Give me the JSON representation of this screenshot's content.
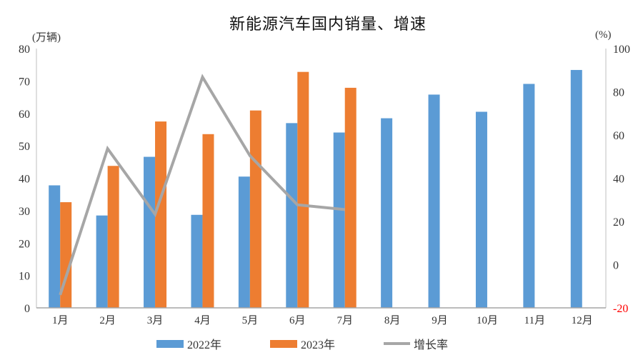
{
  "chart_data": {
    "type": "combo-bar-line",
    "title": "新能源汽车国内销量、增速",
    "categories": [
      "1月",
      "2月",
      "3月",
      "4月",
      "5月",
      "6月",
      "7月",
      "8月",
      "9月",
      "10月",
      "11月",
      "12月"
    ],
    "series": [
      {
        "name": "2022年",
        "chart_type": "bar",
        "color": "#5B9BD5",
        "axis": "left",
        "values": [
          37.8,
          28.5,
          46.6,
          28.7,
          40.5,
          57.0,
          54.1,
          58.5,
          65.8,
          60.5,
          69.1,
          73.4
        ]
      },
      {
        "name": "2023年",
        "chart_type": "bar",
        "color": "#ED7D31",
        "axis": "left",
        "values": [
          32.6,
          43.8,
          57.5,
          53.6,
          60.9,
          72.8,
          67.9,
          null,
          null,
          null,
          null,
          null
        ]
      },
      {
        "name": "增长率",
        "chart_type": "line",
        "color": "#A6A6A6",
        "axis": "right",
        "values": [
          -14.0,
          53.7,
          23.3,
          86.8,
          50.4,
          27.7,
          25.5,
          null,
          null,
          null,
          null,
          null
        ]
      }
    ],
    "left_axis": {
      "label": "(万辆)",
      "min": 0,
      "max": 80,
      "ticks": [
        0,
        10,
        20,
        30,
        40,
        50,
        60,
        70,
        80
      ],
      "tick_color": "#333333"
    },
    "right_axis": {
      "label": "(%)",
      "min": -20,
      "max": 100,
      "ticks": [
        -20,
        0,
        20,
        40,
        60,
        80,
        100
      ],
      "tick_color": "#333333",
      "negative_tick_color": "#FF0000"
    },
    "grid": false,
    "legend_position": "bottom",
    "axis_line_color": "#BFBFBF",
    "baseline_color": "#A6A6A6",
    "background_color": "#FFFFFF"
  }
}
